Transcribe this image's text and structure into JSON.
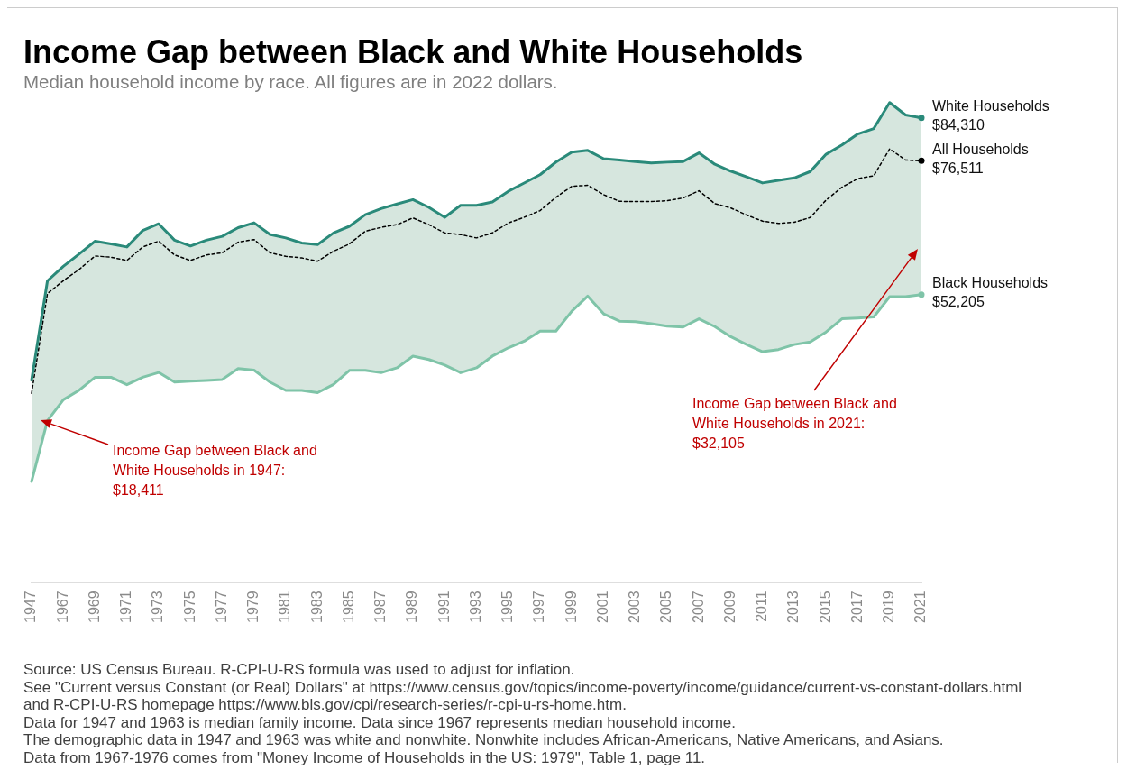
{
  "chart_data": {
    "type": "line",
    "title": "Income Gap between Black and White Households",
    "subtitle": "Median household income by race. All figures are in 2022 dollars.",
    "categories": [
      "1947",
      null,
      "1967",
      null,
      "1969",
      null,
      "1971",
      null,
      "1973",
      null,
      "1975",
      null,
      "1977",
      null,
      "1979",
      null,
      "1981",
      null,
      "1983",
      null,
      "1985",
      null,
      "1987",
      null,
      "1989",
      null,
      "1991",
      null,
      "1993",
      null,
      "1995",
      null,
      "1997",
      null,
      "1999",
      null,
      "2001",
      null,
      "2003",
      null,
      "2005",
      null,
      "2007",
      null,
      "2009",
      null,
      "2011",
      null,
      "2013",
      null,
      "2015",
      null,
      "2017",
      null,
      "2019",
      null,
      "2021"
    ],
    "series": [
      {
        "name": "White Households",
        "color": "#2a8a7a",
        "line_style": "solid",
        "values": [
          36660,
          54700,
          57350,
          59600,
          61900,
          61400,
          60860,
          63850,
          65070,
          62090,
          61040,
          62090,
          62790,
          64370,
          65250,
          63140,
          62500,
          61580,
          61280,
          63400,
          64610,
          66720,
          67820,
          68670,
          69460,
          68050,
          66250,
          68420,
          68420,
          69040,
          70970,
          72470,
          73980,
          76280,
          78100,
          78400,
          76900,
          76650,
          76380,
          76120,
          76260,
          76380,
          77950,
          75880,
          74640,
          73600,
          72490,
          72950,
          73410,
          74560,
          77700,
          79390,
          81390,
          82370,
          87100,
          84840,
          84310
        ],
        "value_labels": [
          null,
          null,
          null,
          null,
          null,
          null,
          null,
          null,
          null,
          null,
          null,
          null,
          null,
          null,
          null,
          null,
          null,
          null,
          null,
          null,
          null,
          null,
          null,
          null,
          null,
          null,
          null,
          null,
          null,
          null,
          null,
          null,
          null,
          null,
          null,
          null,
          null,
          null,
          null,
          null,
          null,
          null,
          null,
          null,
          null,
          null,
          null,
          null,
          null,
          null,
          null,
          null,
          null,
          null,
          null,
          null,
          "$84,310"
        ]
      },
      {
        "name": "All Households",
        "color": "#000000",
        "line_style": "dotted",
        "values": [
          34260,
          52390,
          54720,
          56780,
          59230,
          58990,
          58410,
          60860,
          61920,
          59400,
          58410,
          59400,
          59810,
          61740,
          62210,
          59810,
          59160,
          58870,
          58270,
          60080,
          61410,
          63710,
          64420,
          64910,
          66130,
          64910,
          63410,
          63110,
          62500,
          63410,
          65210,
          66250,
          67460,
          69880,
          71880,
          72060,
          70350,
          69140,
          69110,
          69110,
          69250,
          69760,
          71060,
          68720,
          67950,
          66650,
          65550,
          65140,
          65350,
          66200,
          69370,
          71720,
          73270,
          73790,
          78670,
          76650,
          76511
        ],
        "value_labels": [
          null,
          null,
          null,
          null,
          null,
          null,
          null,
          null,
          null,
          null,
          null,
          null,
          null,
          null,
          null,
          null,
          null,
          null,
          null,
          null,
          null,
          null,
          null,
          null,
          null,
          null,
          null,
          null,
          null,
          null,
          null,
          null,
          null,
          null,
          null,
          null,
          null,
          null,
          null,
          null,
          null,
          null,
          null,
          null,
          null,
          null,
          null,
          null,
          null,
          null,
          null,
          null,
          null,
          null,
          null,
          null,
          "$76,511"
        ],
        "lower": [
          18249,
          29290,
          33100,
          34850,
          37180,
          37180,
          35830,
          37180,
          38060,
          36310,
          36480,
          36600,
          36780,
          38760,
          38470,
          36310,
          34800,
          34800,
          34380,
          35890,
          38430,
          38430,
          38010,
          38900,
          41030,
          40410,
          39400,
          38010,
          38900,
          41030,
          42530,
          43740,
          45570,
          45570,
          49180,
          51920,
          48710,
          47380,
          47290,
          46900,
          46450,
          46310,
          47810,
          46380,
          44550,
          43130,
          41830,
          42220,
          43130,
          43590,
          45410,
          47810,
          47940,
          48130,
          51830,
          51830,
          52205
        ],
        "upper": [
          36660,
          54700,
          57350,
          59600,
          61900,
          61400,
          60860,
          63850,
          65070,
          62090,
          61040,
          62090,
          62790,
          64370,
          65250,
          63140,
          62500,
          61580,
          61280,
          63400,
          64610,
          66720,
          67820,
          68670,
          69460,
          68050,
          66250,
          68420,
          68420,
          69040,
          70970,
          72470,
          73980,
          76280,
          78100,
          78400,
          76900,
          76650,
          76380,
          76120,
          76260,
          76380,
          77950,
          75880,
          74640,
          73600,
          72490,
          72950,
          73410,
          74560,
          77700,
          79390,
          81390,
          82370,
          87100,
          84840,
          84310
        ]
      },
      {
        "name": "Black Households",
        "color": "#7fc4a8",
        "line_style": "solid",
        "values": [
          18249,
          29290,
          33100,
          34850,
          37180,
          37180,
          35830,
          37180,
          38060,
          36310,
          36480,
          36600,
          36780,
          38760,
          38470,
          36310,
          34800,
          34800,
          34380,
          35890,
          38430,
          38430,
          38010,
          38900,
          41030,
          40410,
          39400,
          38010,
          38900,
          41030,
          42530,
          43740,
          45570,
          45570,
          49180,
          51920,
          48710,
          47380,
          47290,
          46900,
          46450,
          46310,
          47810,
          46380,
          44550,
          43130,
          41830,
          42220,
          43130,
          43590,
          45410,
          47810,
          47940,
          48130,
          51830,
          51830,
          52205
        ],
        "value_labels": [
          null,
          null,
          null,
          null,
          null,
          null,
          null,
          null,
          null,
          null,
          null,
          null,
          null,
          null,
          null,
          null,
          null,
          null,
          null,
          null,
          null,
          null,
          null,
          null,
          null,
          null,
          null,
          null,
          null,
          null,
          null,
          null,
          null,
          null,
          null,
          null,
          null,
          null,
          null,
          null,
          null,
          null,
          null,
          null,
          null,
          null,
          null,
          null,
          null,
          null,
          null,
          null,
          null,
          null,
          null,
          null,
          "$52,205"
        ]
      }
    ],
    "tick_labels": "x",
    "grid": false,
    "legend": false,
    "marker": "none",
    "annotations": [
      "Income Gap between Black and White Households in 1947: $18,411",
      "Income Gap between Black and White Households in 2021: $32,105",
      "Source: US Census Bureau. R-CPI-U-RS formula was used to adjust for inflation.",
      "See \"Current versus Constant (or Real) Dollars\" at https://www.census.gov/topics/income-poverty/income/guidance/current-vs-constant-dollars.html",
      "and R-CPI-U-RS homepage https://www.bls.gov/cpi/research-series/r-cpi-u-rs-home.htm.",
      "Data for 1947 and 1963 is median family income. Data since 1967 represents median household income.",
      "The demographic data in 1947 and 1963 was white and nonwhite. Nonwhite includes African-Americans, Native Americans, and Asians.",
      "Data from 1967-1976 comes from \"Money Income of Households in the US: 1979\", Table 1, page 11."
    ]
  }
}
